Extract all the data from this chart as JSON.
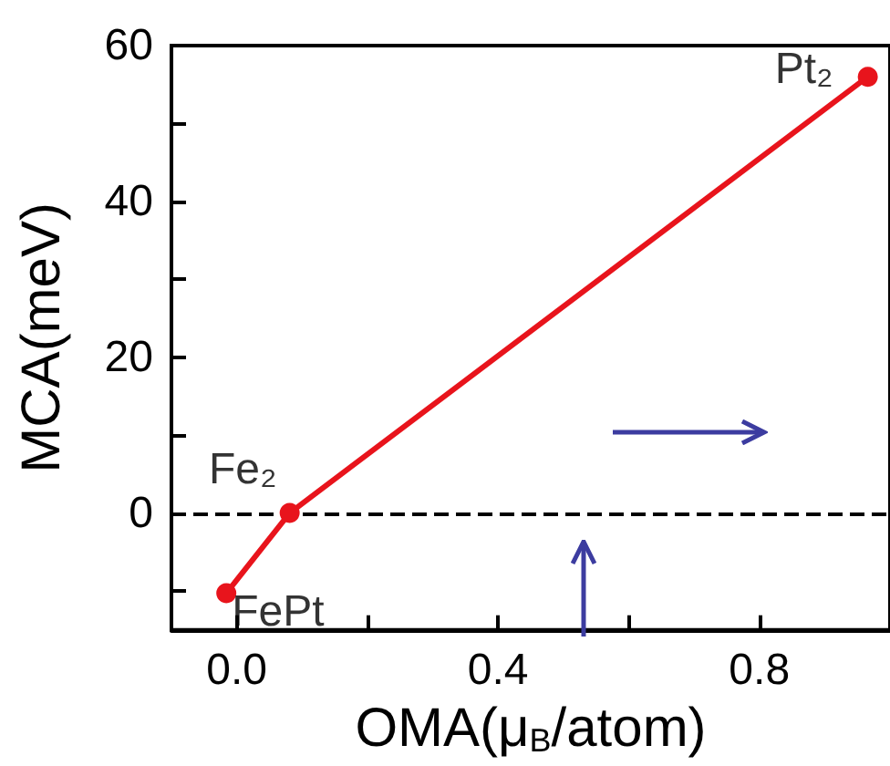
{
  "chart_data": {
    "type": "line",
    "xlabel": "OMA(μ$_{B}$/atom)",
    "ylabel": "MCA(meV)",
    "x": [
      -0.016,
      0.081,
      0.966
    ],
    "series": [
      {
        "color": "#e8141c",
        "values": [
          -10.3,
          0,
          56
        ]
      }
    ],
    "marker": "circle",
    "line_style": "solid",
    "grid": false,
    "xlim": [
      -0.1,
      1.0
    ],
    "xticks": [
      {
        "value": 0,
        "label": "0.0"
      },
      {
        "value": 0.2,
        "label": null
      },
      0.4,
      {
        "value": 0.6,
        "label": null
      },
      0.8
    ],
    "ylim": [
      -15,
      60
    ],
    "yticks": [
      {
        "value": -10,
        "label": null
      },
      0,
      {
        "value": 10,
        "label": null
      },
      20,
      {
        "value": 30,
        "label": null
      },
      40,
      {
        "value": 50,
        "label": null
      },
      60
    ],
    "ref_lines": [
      {
        "axis": "y",
        "value": 0,
        "color": "#000000",
        "line_style": "dashed"
      }
    ],
    "annotations": [
      {
        "text": "FePt",
        "x": -0.016,
        "y": -10.3
      },
      {
        "text": "Fe₂",
        "x": 0.081,
        "y": 0
      },
      {
        "text": "Pt₂",
        "x": 0.966,
        "y": 56
      }
    ]
  }
}
